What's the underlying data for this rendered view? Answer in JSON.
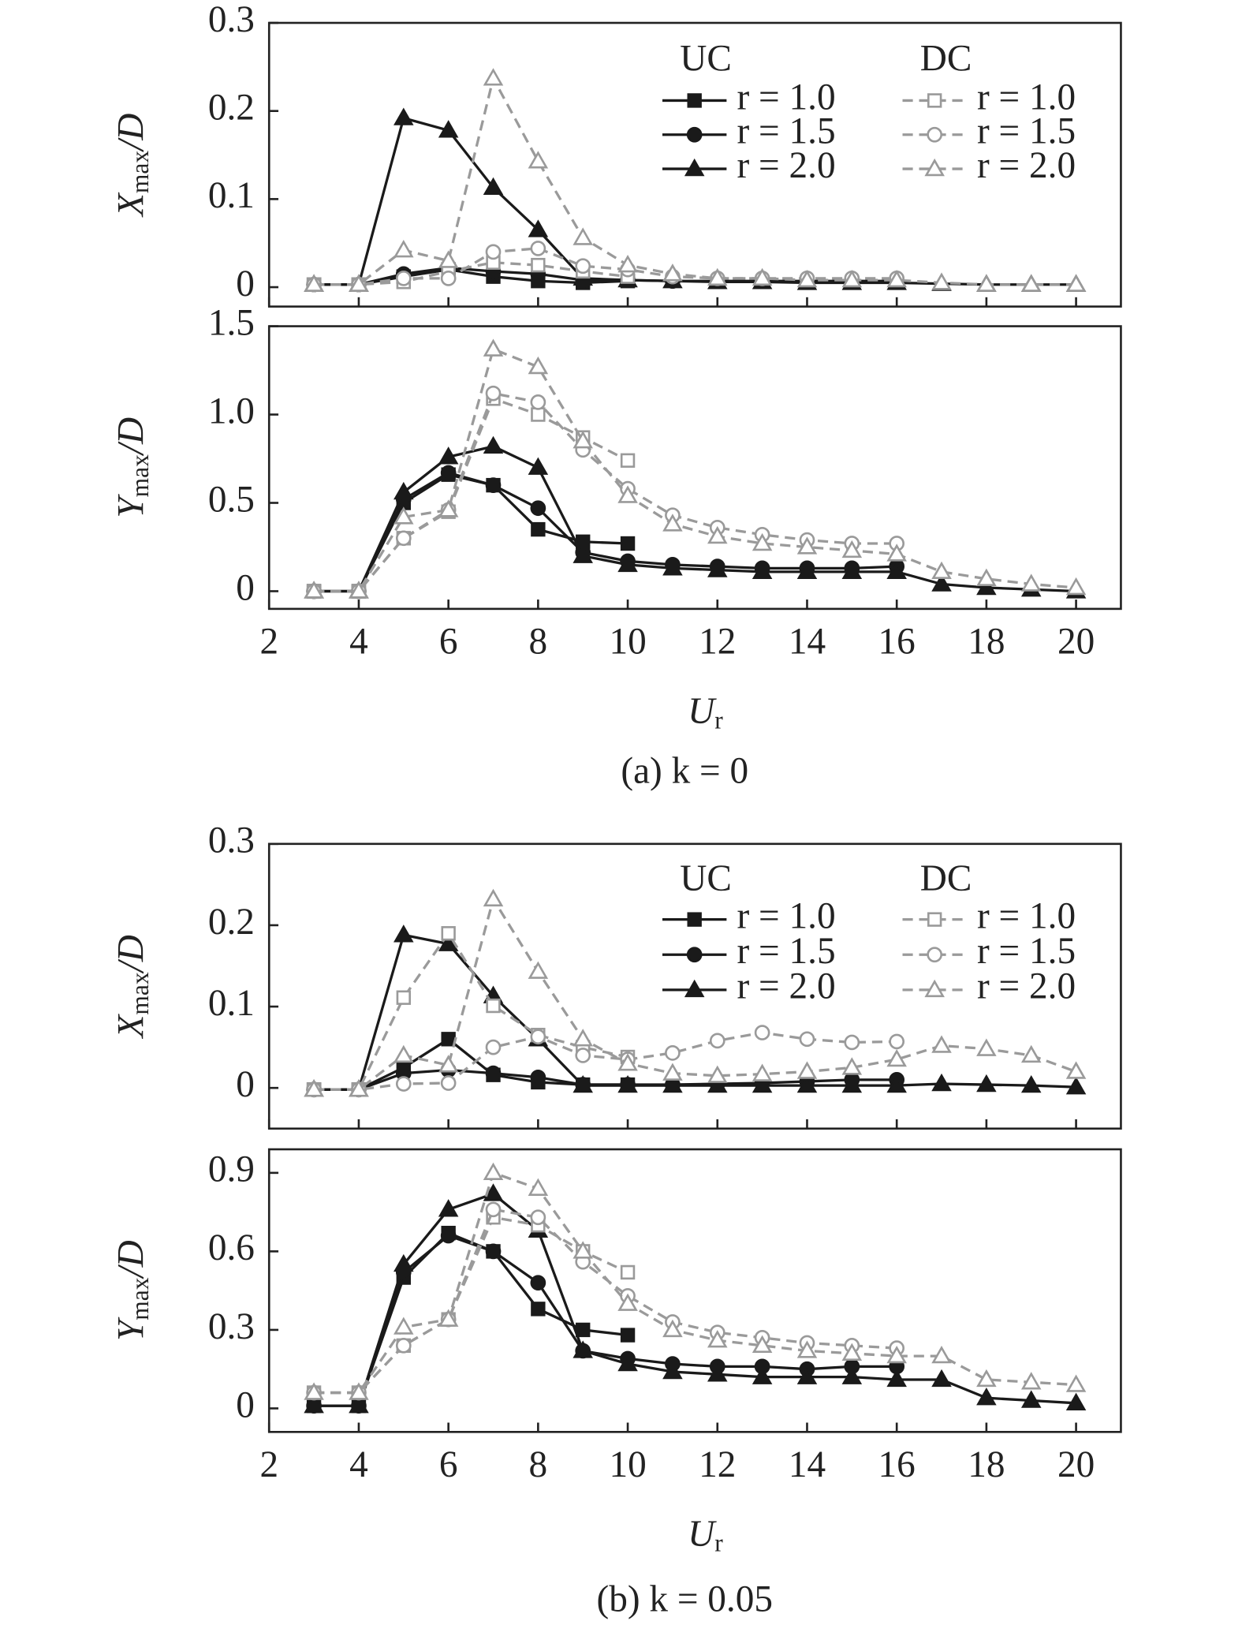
{
  "chart_data": [
    {
      "type": "line",
      "y_label": {
        "symbol": "X",
        "subscript": "max",
        "suffix": "/D"
      },
      "x": [
        3,
        4,
        5,
        6,
        7,
        8,
        9,
        10,
        11,
        12,
        13,
        14,
        15,
        16,
        17,
        18,
        19,
        20
      ],
      "xlim": [
        2,
        21
      ],
      "xticks": [
        2,
        4,
        6,
        8,
        10,
        12,
        14,
        16,
        18,
        20
      ],
      "show_xtick_labels": false,
      "ylim": [
        -0.022,
        0.3
      ],
      "yticks": [
        0,
        0.1,
        0.2,
        0.3
      ],
      "legend_titles": [
        "UC",
        "DC"
      ],
      "series": [
        {
          "name": "r = 1.0",
          "color": "#1a1a1a",
          "marker": "square",
          "line_style": "solid",
          "values": [
            0.003,
            0.003,
            0.012,
            0.02,
            0.012,
            0.007,
            0.005,
            0.007,
            null,
            null,
            null,
            null,
            null,
            null,
            null,
            null,
            null,
            null
          ]
        },
        {
          "name": "r = 1.5",
          "color": "#1a1a1a",
          "marker": "circle",
          "line_style": "solid",
          "values": [
            0.003,
            0.003,
            0.015,
            0.022,
            0.018,
            0.015,
            0.008,
            0.008,
            0.007,
            0.007,
            0.007,
            0.007,
            0.007,
            0.007,
            null,
            null,
            null,
            null
          ]
        },
        {
          "name": "r = 2.0",
          "color": "#1a1a1a",
          "marker": "triangle",
          "line_style": "solid",
          "values": [
            0.003,
            0.003,
            0.192,
            0.178,
            0.113,
            0.065,
            0.01,
            0.008,
            0.007,
            0.006,
            0.006,
            0.005,
            0.005,
            0.005,
            0.004,
            0.003,
            0.003,
            0.003
          ]
        },
        {
          "name": "r = 1.0",
          "color": "#9a9a9a",
          "marker": "square",
          "line_style": "dashed",
          "values": [
            0.003,
            0.003,
            0.006,
            0.018,
            0.028,
            0.025,
            0.018,
            0.012,
            null,
            null,
            null,
            null,
            null,
            null,
            null,
            null,
            null,
            null
          ]
        },
        {
          "name": "r = 1.5",
          "color": "#9a9a9a",
          "marker": "circle",
          "line_style": "dashed",
          "values": [
            0.003,
            0.003,
            0.01,
            0.01,
            0.04,
            0.044,
            0.024,
            0.02,
            0.012,
            0.01,
            0.01,
            0.01,
            0.01,
            0.01,
            null,
            null,
            null,
            null
          ]
        },
        {
          "name": "r = 2.0",
          "color": "#9a9a9a",
          "marker": "triangle",
          "line_style": "dashed",
          "values": [
            0.003,
            0.003,
            0.042,
            0.03,
            0.237,
            0.143,
            0.056,
            0.025,
            0.015,
            0.01,
            0.01,
            0.008,
            0.008,
            0.008,
            0.005,
            0.003,
            0.003,
            0.003
          ]
        }
      ]
    },
    {
      "type": "line",
      "y_label": {
        "symbol": "Y",
        "subscript": "max",
        "suffix": "/D"
      },
      "x_label": {
        "symbol": "U",
        "subscript": "r"
      },
      "caption": "(a) k = 0",
      "x": [
        3,
        4,
        5,
        6,
        7,
        8,
        9,
        10,
        11,
        12,
        13,
        14,
        15,
        16,
        17,
        18,
        19,
        20
      ],
      "xlim": [
        2,
        21
      ],
      "xticks": [
        2,
        4,
        6,
        8,
        10,
        12,
        14,
        16,
        18,
        20
      ],
      "show_xtick_labels": true,
      "ylim": [
        -0.1,
        1.5
      ],
      "yticks": [
        0,
        0.5,
        {
          "value": 1,
          "label": "1.0"
        },
        1.5
      ],
      "series": [
        {
          "name": "r = 1.0",
          "color": "#1a1a1a",
          "marker": "square",
          "line_style": "solid",
          "values": [
            0,
            0,
            0.5,
            0.66,
            0.6,
            0.35,
            0.28,
            0.27,
            null,
            null,
            null,
            null,
            null,
            null,
            null,
            null,
            null,
            null
          ]
        },
        {
          "name": "r = 1.5",
          "color": "#1a1a1a",
          "marker": "circle",
          "line_style": "solid",
          "values": [
            0,
            0,
            0.52,
            0.67,
            0.6,
            0.47,
            0.22,
            0.17,
            0.15,
            0.14,
            0.13,
            0.13,
            0.13,
            0.14,
            null,
            null,
            null,
            null
          ]
        },
        {
          "name": "r = 2.0",
          "color": "#1a1a1a",
          "marker": "triangle",
          "line_style": "solid",
          "values": [
            0,
            0,
            0.56,
            0.76,
            0.82,
            0.7,
            0.2,
            0.15,
            0.13,
            0.12,
            0.11,
            0.11,
            0.11,
            0.11,
            0.04,
            0.02,
            0.01,
            0
          ]
        },
        {
          "name": "r = 1.0",
          "color": "#9a9a9a",
          "marker": "square",
          "line_style": "dashed",
          "values": [
            0,
            0,
            0.3,
            0.45,
            1.09,
            1.0,
            0.87,
            0.74,
            null,
            null,
            null,
            null,
            null,
            null,
            null,
            null,
            null,
            null
          ]
        },
        {
          "name": "r = 1.5",
          "color": "#9a9a9a",
          "marker": "circle",
          "line_style": "dashed",
          "values": [
            0,
            0,
            0.3,
            0.46,
            1.12,
            1.07,
            0.8,
            0.58,
            0.43,
            0.36,
            0.32,
            0.29,
            0.27,
            0.27,
            null,
            null,
            null,
            null
          ]
        },
        {
          "name": "r = 2.0",
          "color": "#9a9a9a",
          "marker": "triangle",
          "line_style": "dashed",
          "values": [
            0,
            0,
            0.42,
            0.46,
            1.37,
            1.27,
            0.85,
            0.54,
            0.38,
            0.31,
            0.27,
            0.25,
            0.23,
            0.21,
            0.11,
            0.07,
            0.04,
            0.02
          ]
        }
      ]
    },
    {
      "type": "line",
      "y_label": {
        "symbol": "X",
        "subscript": "max",
        "suffix": "/D"
      },
      "x": [
        3,
        4,
        5,
        6,
        7,
        8,
        9,
        10,
        11,
        12,
        13,
        14,
        15,
        16,
        17,
        18,
        19,
        20
      ],
      "xlim": [
        2,
        21
      ],
      "xticks": [
        2,
        4,
        6,
        8,
        10,
        12,
        14,
        16,
        18,
        20
      ],
      "show_xtick_labels": false,
      "ylim": [
        -0.05,
        0.3
      ],
      "yticks": [
        0,
        0.1,
        0.2,
        0.3
      ],
      "legend_titles": [
        "UC",
        "DC"
      ],
      "series": [
        {
          "name": "r = 1.0",
          "color": "#1a1a1a",
          "marker": "square",
          "line_style": "solid",
          "values": [
            -0.002,
            -0.002,
            0.025,
            0.06,
            0.016,
            0.007,
            0.004,
            0.004,
            null,
            null,
            null,
            null,
            null,
            null,
            null,
            null,
            null,
            null
          ]
        },
        {
          "name": "r = 1.5",
          "color": "#1a1a1a",
          "marker": "circle",
          "line_style": "solid",
          "values": [
            -0.002,
            -0.002,
            0.018,
            0.022,
            0.018,
            0.013,
            0.004,
            0.004,
            0.004,
            0.005,
            0.006,
            0.008,
            0.01,
            0.01,
            null,
            null,
            null,
            null
          ]
        },
        {
          "name": "r = 2.0",
          "color": "#1a1a1a",
          "marker": "triangle",
          "line_style": "solid",
          "values": [
            -0.002,
            -0.002,
            0.188,
            0.177,
            0.113,
            0.06,
            0.003,
            0.003,
            0.003,
            0.003,
            0.003,
            0.003,
            0.003,
            0.003,
            0.005,
            0.004,
            0.003,
            0.001
          ]
        },
        {
          "name": "r = 1.0",
          "color": "#9a9a9a",
          "marker": "square",
          "line_style": "dashed",
          "values": [
            -0.002,
            -0.002,
            0.111,
            0.19,
            0.101,
            0.065,
            0.05,
            0.038,
            null,
            null,
            null,
            null,
            null,
            null,
            null,
            null,
            null,
            null
          ]
        },
        {
          "name": "r = 1.5",
          "color": "#9a9a9a",
          "marker": "circle",
          "line_style": "dashed",
          "values": [
            -0.002,
            -0.002,
            0.005,
            0.006,
            0.05,
            0.063,
            0.04,
            0.035,
            0.043,
            0.058,
            0.068,
            0.06,
            0.056,
            0.057,
            null,
            null,
            null,
            null
          ]
        },
        {
          "name": "r = 2.0",
          "color": "#9a9a9a",
          "marker": "triangle",
          "line_style": "dashed",
          "values": [
            -0.002,
            -0.002,
            0.04,
            0.028,
            0.232,
            0.143,
            0.06,
            0.03,
            0.018,
            0.015,
            0.017,
            0.02,
            0.025,
            0.035,
            0.052,
            0.048,
            0.04,
            0.02
          ]
        }
      ]
    },
    {
      "type": "line",
      "y_label": {
        "symbol": "Y",
        "subscript": "max",
        "suffix": "/D"
      },
      "x_label": {
        "symbol": "U",
        "subscript": "r"
      },
      "caption": "(b) k = 0.05",
      "x": [
        3,
        4,
        5,
        6,
        7,
        8,
        9,
        10,
        11,
        12,
        13,
        14,
        15,
        16,
        17,
        18,
        19,
        20
      ],
      "xlim": [
        2,
        21
      ],
      "xticks": [
        2,
        4,
        6,
        8,
        10,
        12,
        14,
        16,
        18,
        20
      ],
      "show_xtick_labels": true,
      "ylim": [
        -0.09,
        0.99
      ],
      "yticks": [
        0,
        0.3,
        0.6,
        0.9
      ],
      "series": [
        {
          "name": "r = 1.0",
          "color": "#1a1a1a",
          "marker": "square",
          "line_style": "solid",
          "values": [
            0.01,
            0.01,
            0.5,
            0.67,
            0.6,
            0.38,
            0.3,
            0.28,
            null,
            null,
            null,
            null,
            null,
            null,
            null,
            null,
            null,
            null
          ]
        },
        {
          "name": "r = 1.5",
          "color": "#1a1a1a",
          "marker": "circle",
          "line_style": "solid",
          "values": [
            0.01,
            0.01,
            0.52,
            0.66,
            0.6,
            0.48,
            0.22,
            0.19,
            0.17,
            0.16,
            0.16,
            0.15,
            0.16,
            0.16,
            null,
            null,
            null,
            null
          ]
        },
        {
          "name": "r = 2.0",
          "color": "#1a1a1a",
          "marker": "triangle",
          "line_style": "solid",
          "values": [
            0.01,
            0.01,
            0.55,
            0.76,
            0.82,
            0.68,
            0.22,
            0.17,
            0.14,
            0.13,
            0.12,
            0.12,
            0.12,
            0.11,
            0.11,
            0.04,
            0.03,
            0.02
          ]
        },
        {
          "name": "r = 1.0",
          "color": "#9a9a9a",
          "marker": "square",
          "line_style": "dashed",
          "values": [
            0.06,
            0.06,
            0.24,
            0.34,
            0.73,
            0.7,
            0.6,
            0.52,
            null,
            null,
            null,
            null,
            null,
            null,
            null,
            null,
            null,
            null
          ]
        },
        {
          "name": "r = 1.5",
          "color": "#9a9a9a",
          "marker": "circle",
          "line_style": "dashed",
          "values": [
            0.06,
            0.06,
            0.24,
            0.34,
            0.76,
            0.73,
            0.56,
            0.43,
            0.33,
            0.29,
            0.27,
            0.25,
            0.24,
            0.23,
            null,
            null,
            null,
            null
          ]
        },
        {
          "name": "r = 2.0",
          "color": "#9a9a9a",
          "marker": "triangle",
          "line_style": "dashed",
          "values": [
            0.06,
            0.06,
            0.31,
            0.34,
            0.9,
            0.84,
            0.6,
            0.4,
            0.3,
            0.26,
            0.24,
            0.22,
            0.21,
            0.2,
            0.2,
            0.11,
            0.1,
            0.09
          ]
        }
      ]
    }
  ]
}
